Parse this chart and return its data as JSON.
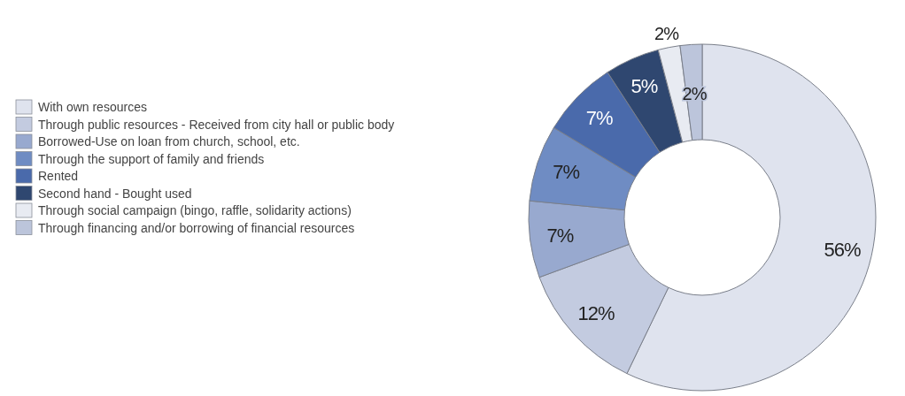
{
  "chart_data": {
    "type": "donut",
    "categories": [
      "With own resources",
      "Through public resources - Received from city hall or public body",
      "Borrowed-Use on loan from church, school, etc.",
      "Through the support of family and friends",
      "Rented",
      "Second hand - Bought used",
      "Through social campaign (bingo, raffle, solidarity actions)",
      "Through financing and/or borrowing of financial resources"
    ],
    "values": [
      56,
      12,
      7,
      7,
      7,
      5,
      2,
      2
    ],
    "colors": [
      "#dfe3ee",
      "#c3cbe0",
      "#98a9cf",
      "#6f8cc3",
      "#4a6aab",
      "#2f4770",
      "#e8ebf2",
      "#bcc5db"
    ],
    "value_labels": [
      "56%",
      "12%",
      "7%",
      "7%",
      "7%",
      "5%",
      "2%",
      "2%"
    ],
    "legend": "left"
  }
}
